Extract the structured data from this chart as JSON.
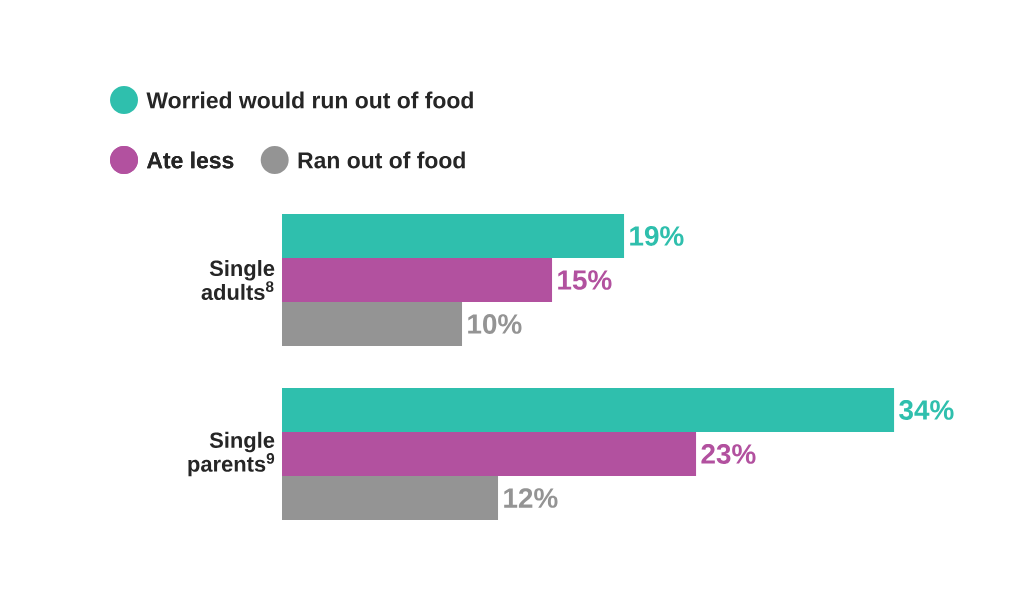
{
  "chart_data": {
    "type": "bar",
    "orientation": "horizontal",
    "categories": [
      "Single adults$^{8}$",
      "Single parents$^{9}$"
    ],
    "series": [
      {
        "name": "Worried would run out of food",
        "color": "#2fbfad",
        "values": [
          19,
          34
        ],
        "value_labels": [
          "19%",
          "34%"
        ]
      },
      {
        "name": "Ate less",
        "color": "#b2519f",
        "values": [
          15,
          23
        ],
        "value_labels": [
          "15%",
          "23%"
        ]
      },
      {
        "name": "Ran out of food",
        "color": "#949494",
        "values": [
          10,
          12
        ],
        "value_labels": [
          "10%",
          "12%"
        ]
      }
    ],
    "legend": "top"
  }
}
